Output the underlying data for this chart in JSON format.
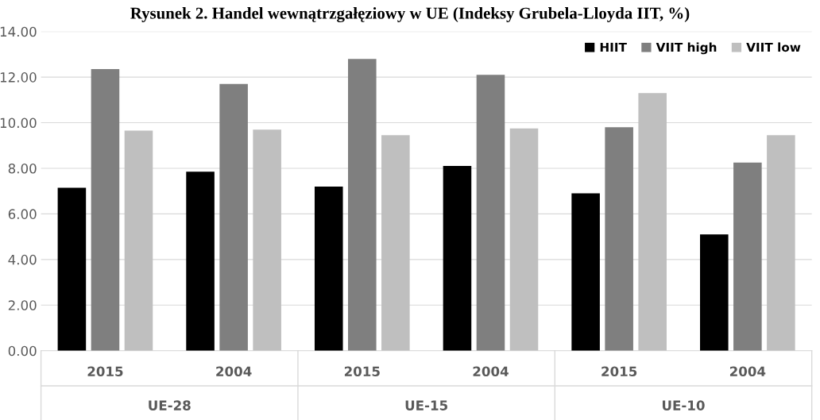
{
  "chart_data": {
    "type": "bar",
    "title": "Rysunek 2. Handel wewnątrzgałęziowy w UE (Indeksy Grubela-Lloyda IIT, %)",
    "categories": [
      "2015",
      "2004",
      "2015",
      "2004",
      "2015",
      "2004"
    ],
    "series": [
      {
        "name": "HIIT",
        "color": "#000000",
        "values": [
          7.15,
          7.85,
          7.2,
          8.1,
          6.9,
          5.1
        ]
      },
      {
        "name": "VIIT high",
        "color": "#7f7f7f",
        "values": [
          12.35,
          11.7,
          12.8,
          12.1,
          9.8,
          8.25
        ]
      },
      {
        "name": "VIIT low",
        "color": "#bfbfbf",
        "values": [
          9.65,
          9.7,
          9.45,
          9.75,
          11.3,
          9.45
        ]
      }
    ],
    "ylim": [
      0,
      14
    ],
    "yticks": [
      {
        "value": 0,
        "label": "0.00"
      },
      {
        "value": 2,
        "label": "2.00"
      },
      {
        "value": 4,
        "label": "4.00"
      },
      {
        "value": 6,
        "label": "6.00"
      },
      {
        "value": 8,
        "label": "8.00"
      },
      {
        "value": 10,
        "label": "10.00"
      },
      {
        "value": 12,
        "label": "12.00"
      },
      {
        "value": 14,
        "label": "14.00"
      }
    ],
    "grid": "y",
    "legend": "top right",
    "annotations": [
      "UE-28",
      "UE-15",
      "UE-10"
    ]
  }
}
